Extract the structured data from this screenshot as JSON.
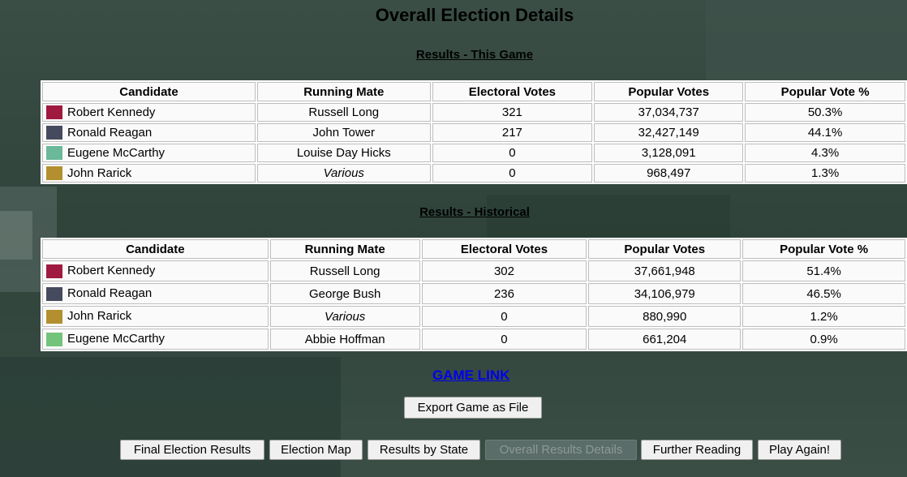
{
  "page_title": "Overall Election Details",
  "section_this_game": "Results - This Game",
  "section_historical": "Results - Historical",
  "columns": [
    "Candidate",
    "Running Mate",
    "Electoral Votes",
    "Popular Votes",
    "Popular Vote %"
  ],
  "this_game": [
    {
      "candidate": "Robert Kennedy",
      "mate": "Russell Long",
      "ev": "321",
      "pv": "37,034,737",
      "pct": "50.3%",
      "color": "#a0193e"
    },
    {
      "candidate": "Ronald Reagan",
      "mate": "John Tower",
      "ev": "217",
      "pv": "32,427,149",
      "pct": "44.1%",
      "color": "#464a5e"
    },
    {
      "candidate": "Eugene McCarthy",
      "mate": "Louise Day Hicks",
      "ev": "0",
      "pv": "3,128,091",
      "pct": "4.3%",
      "color": "#6bb89a"
    },
    {
      "candidate": "John Rarick",
      "mate": "Various",
      "ev": "0",
      "pv": "968,497",
      "pct": "1.3%",
      "color": "#b38f2f"
    }
  ],
  "historical": [
    {
      "candidate": "Robert Kennedy",
      "mate": "Russell Long",
      "ev": "302",
      "pv": "37,661,948",
      "pct": "51.4%",
      "color": "#a0193e"
    },
    {
      "candidate": "Ronald Reagan",
      "mate": "George Bush",
      "ev": "236",
      "pv": "34,106,979",
      "pct": "46.5%",
      "color": "#464a5e"
    },
    {
      "candidate": "John Rarick",
      "mate": "Various",
      "ev": "0",
      "pv": "880,990",
      "pct": "1.2%",
      "color": "#b38f2f"
    },
    {
      "candidate": "Eugene McCarthy",
      "mate": "Abbie Hoffman",
      "ev": "0",
      "pv": "661,204",
      "pct": "0.9%",
      "color": "#72c47a"
    }
  ],
  "game_link": "GAME LINK",
  "export_button": "Export Game as File",
  "nav": {
    "final": "Final Election Results",
    "map": "Election Map",
    "by_state": "Results by State",
    "overall": "Overall Results Details",
    "reading": "Further Reading",
    "again": "Play Again!"
  }
}
